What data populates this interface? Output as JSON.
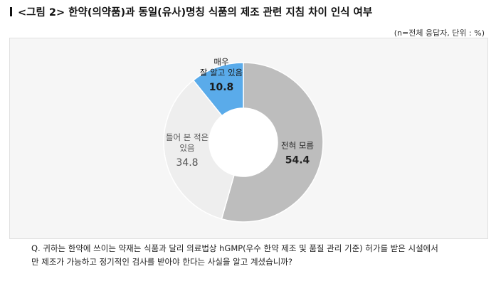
{
  "title": "<그림 2> 한약(의약품)과 동일(유사)명칭 식품의 제조 관련 지침 차이 인식 여부",
  "unit_note": "(n=전체 응답자, 단위 : %)",
  "question_line1": "Q. 귀하는 한약에 쓰이는 약재는 식품과 달리 의료법상 hGMP(우수 한약 제조 및 품질 관리 기준) 허가를 받은 시설에서",
  "question_line2": "만 제조가 가능하고 정기적인 검사를 받아야 한다는 사실을 알고 계셨습니까?",
  "chart_data": {
    "type": "pie",
    "donut": true,
    "title": "",
    "slices": [
      {
        "label_lines": [
          "전혀 모름"
        ],
        "value": 54.4,
        "value_label": "54.4",
        "color": "#bdbdbd",
        "label_color": "#222222"
      },
      {
        "label_lines": [
          "들어 본 적은",
          "있음"
        ],
        "value": 34.8,
        "value_label": "34.8",
        "color": "#eeeeee",
        "label_color": "#555555"
      },
      {
        "label_lines": [
          "매우",
          "잘 알고 있음"
        ],
        "value": 10.8,
        "value_label": "10.8",
        "color": "#5aabea",
        "label_color": "#1a1a1a"
      }
    ]
  }
}
